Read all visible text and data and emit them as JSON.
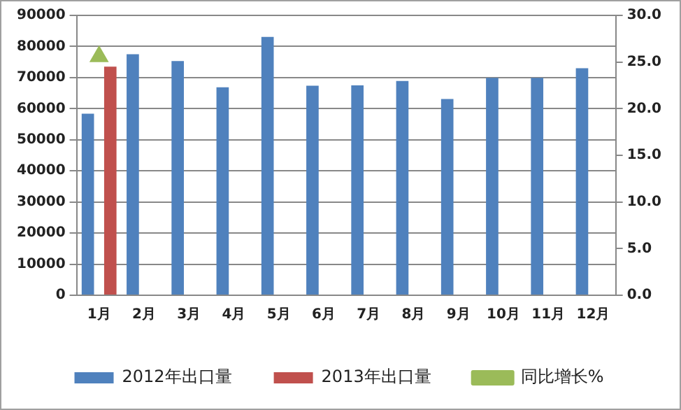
{
  "chart_data": {
    "type": "bar",
    "categories": [
      "1月",
      "2月",
      "3月",
      "4月",
      "5月",
      "6月",
      "7月",
      "8月",
      "9月",
      "10月",
      "11月",
      "12月"
    ],
    "series": [
      {
        "name": "2012年出口量",
        "color": "#4f81bd",
        "values": [
          58400,
          77500,
          75300,
          66900,
          83100,
          67400,
          67500,
          68900,
          63100,
          69900,
          69900,
          73000
        ]
      },
      {
        "name": "2013年出口量",
        "color": "#c0504d",
        "values": [
          73500,
          null,
          null,
          null,
          null,
          null,
          null,
          null,
          null,
          null,
          null,
          null
        ]
      },
      {
        "name": "同比增长%",
        "type": "line",
        "axis": "y2",
        "color": "#9bbb59",
        "marker": "triangle",
        "values": [
          25.6,
          null,
          null,
          null,
          null,
          null,
          null,
          null,
          null,
          null,
          null,
          null
        ]
      }
    ],
    "ylim": [
      0,
      90000
    ],
    "yticks": [
      0,
      10000,
      20000,
      30000,
      40000,
      50000,
      60000,
      70000,
      80000,
      90000
    ],
    "y2lim": [
      0,
      30
    ],
    "y2ticks": [
      {
        "value": 0,
        "label": "0.0"
      },
      {
        "value": 5,
        "label": "5.0"
      },
      {
        "value": 10,
        "label": "10.0"
      },
      {
        "value": 15,
        "label": "15.0"
      },
      {
        "value": 20,
        "label": "20.0"
      },
      {
        "value": 25,
        "label": "25.0"
      },
      {
        "value": 30,
        "label": "30.0"
      }
    ],
    "grid": "y",
    "legend": "bottom"
  }
}
